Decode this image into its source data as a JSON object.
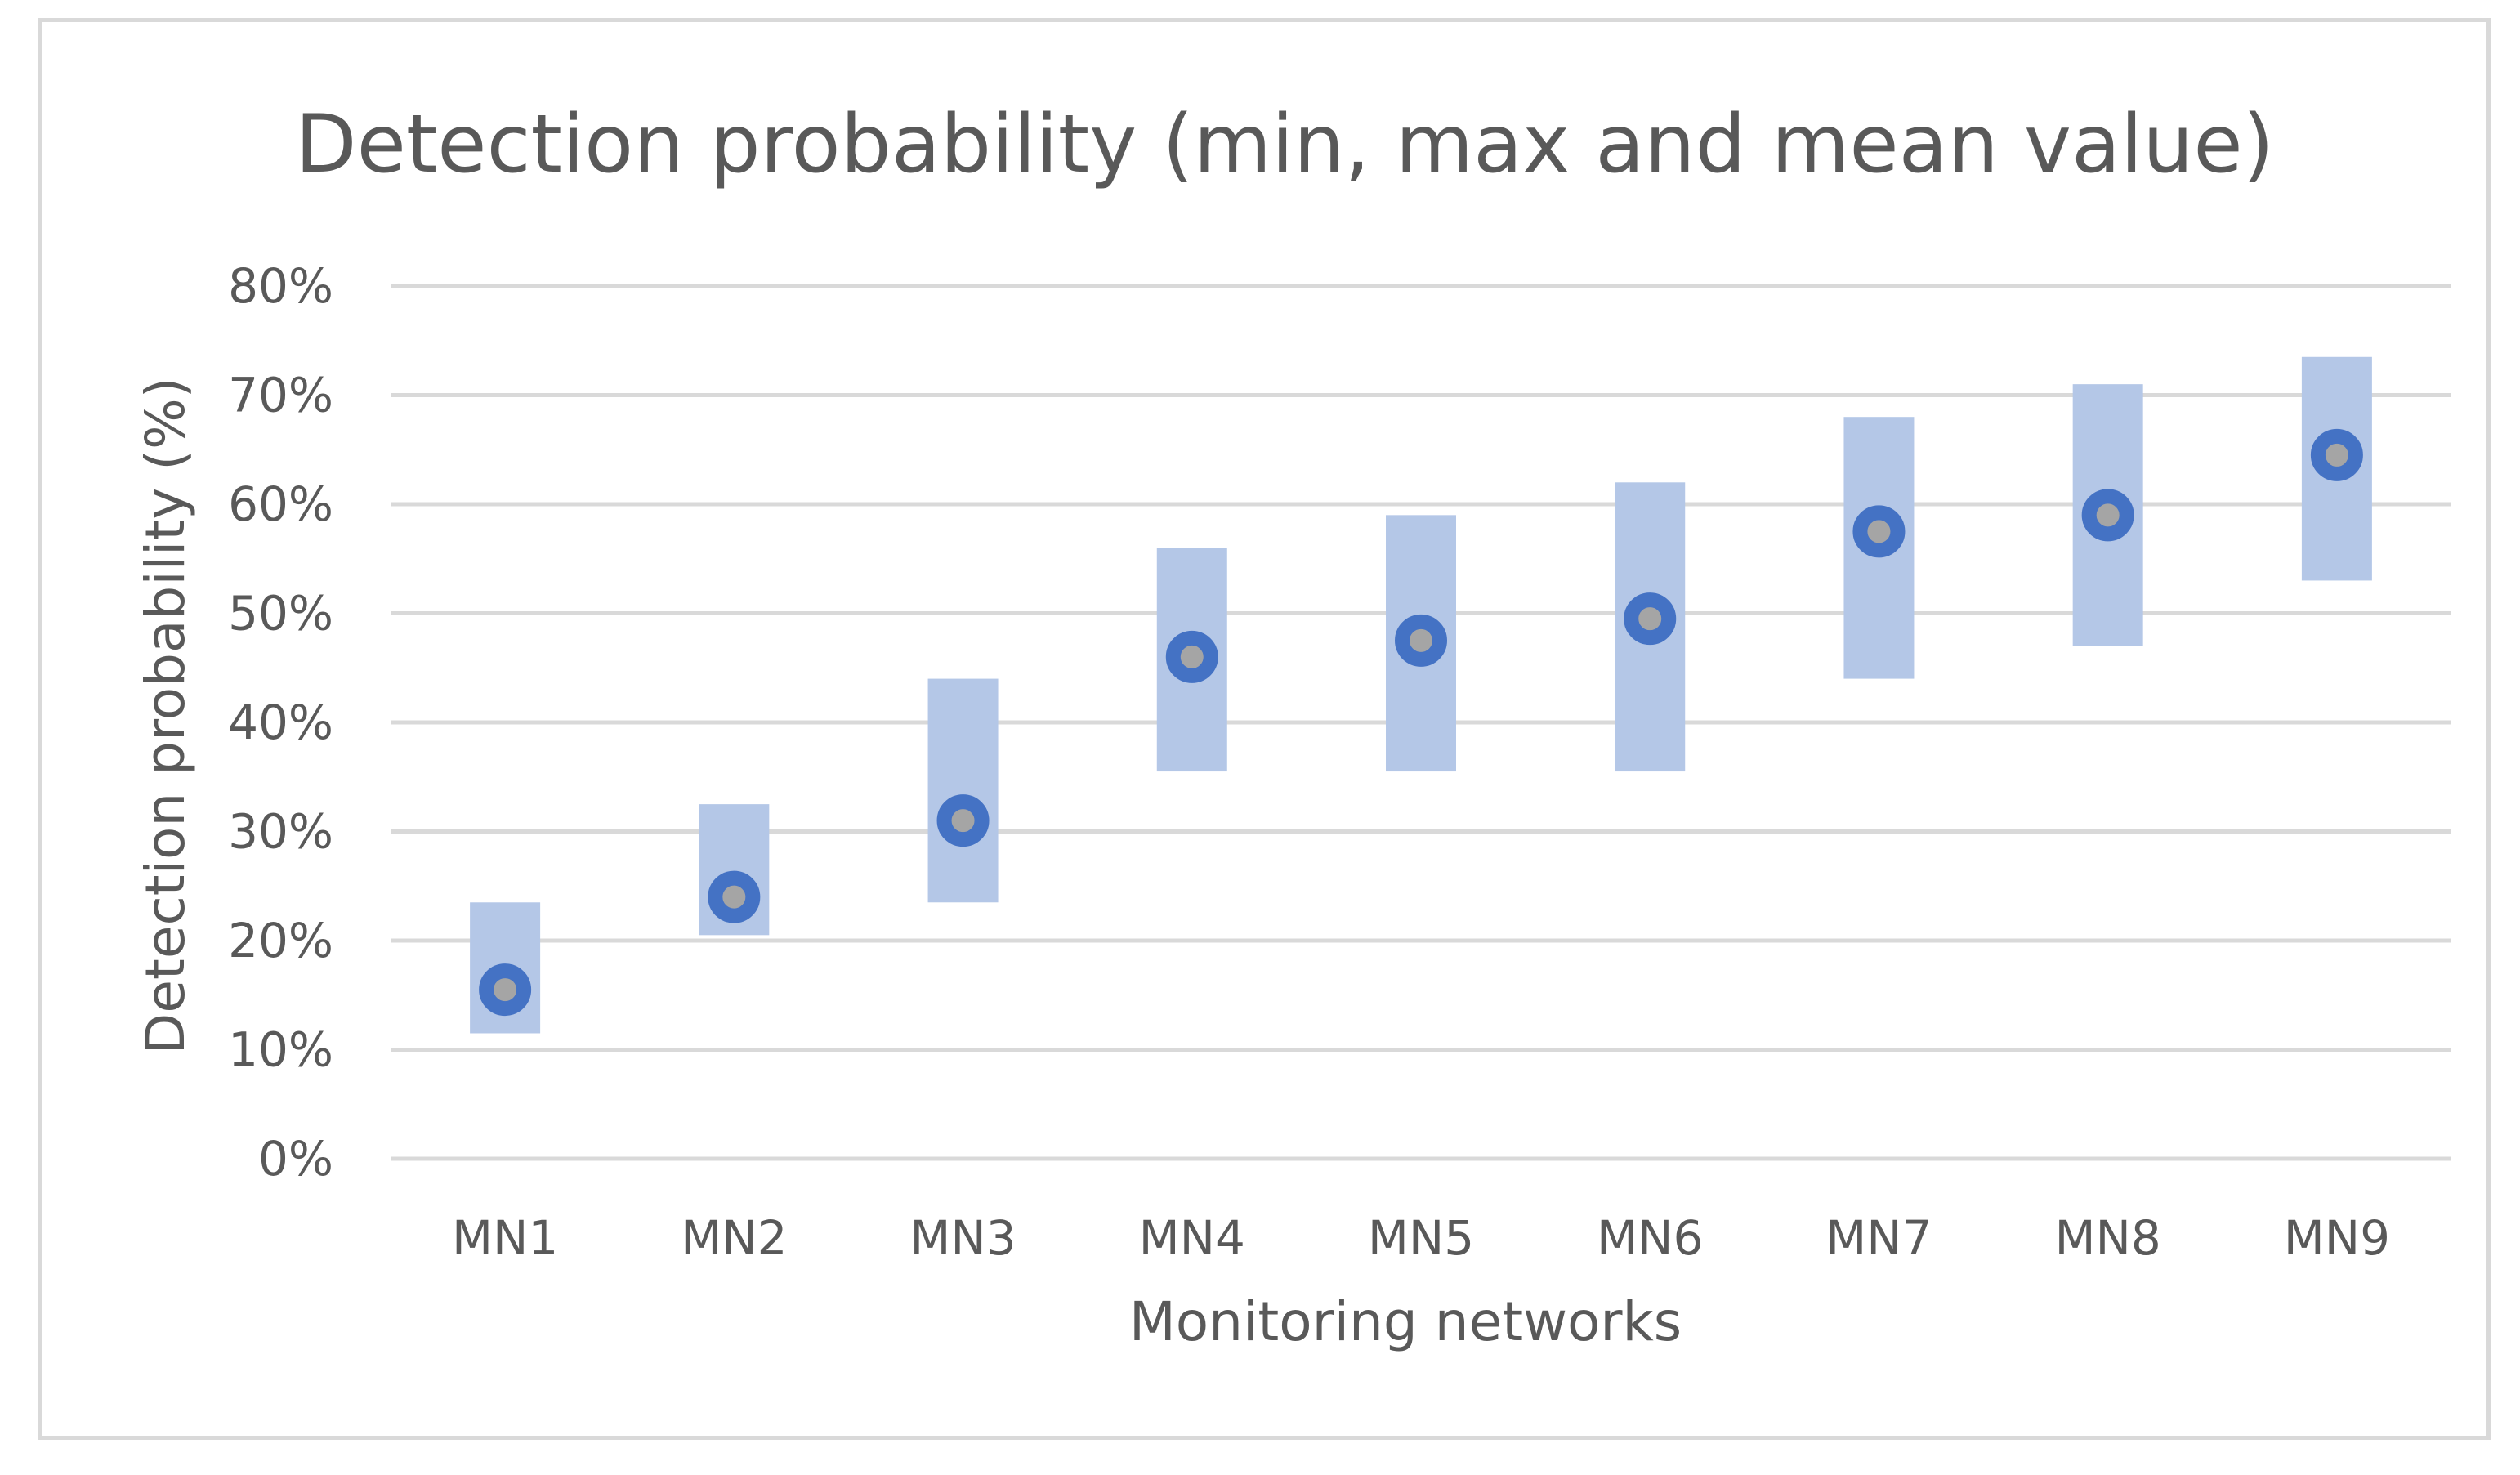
{
  "chart_data": {
    "type": "range-bar-with-mean-markers",
    "title": "Detection probability (min, max and mean value)",
    "xlabel": "Monitoring networks",
    "ylabel": "Detection probability (%)",
    "ylim": [
      0,
      80
    ],
    "y_ticks": [
      0,
      10,
      20,
      30,
      40,
      50,
      60,
      70,
      80
    ],
    "y_tick_labels": [
      "0%",
      "10%",
      "20%",
      "30%",
      "40%",
      "50%",
      "60%",
      "70%",
      "80%"
    ],
    "grid": true,
    "legend": "none",
    "categories": [
      "MN1",
      "MN2",
      "MN3",
      "MN4",
      "MN5",
      "MN6",
      "MN7",
      "MN8",
      "MN9"
    ],
    "series": [
      {
        "name": "min",
        "values": [
          11.5,
          20.5,
          23.5,
          35.5,
          35.5,
          35.5,
          44,
          47,
          53
        ]
      },
      {
        "name": "max",
        "values": [
          23.5,
          32.5,
          44,
          56,
          59,
          62,
          68,
          71,
          73.5
        ]
      },
      {
        "name": "mean",
        "values": [
          15.5,
          24,
          31,
          46,
          47.5,
          49.5,
          57.5,
          59,
          64.5
        ]
      }
    ],
    "colors": {
      "range_bar": "#b4c7e7",
      "mean_marker_fill": "#a5a5a5",
      "mean_marker_stroke": "#4472c4",
      "gridline": "#d9d9d9",
      "text": "#595959"
    }
  }
}
